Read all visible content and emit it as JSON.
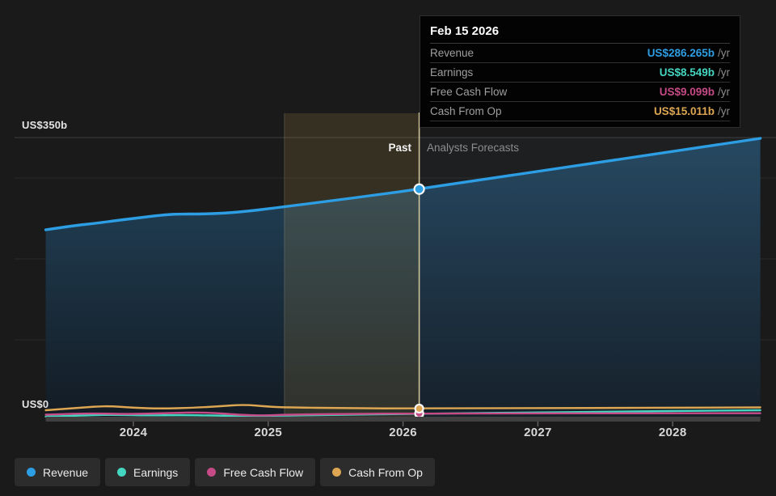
{
  "y_axis": {
    "max_label": "US$350b",
    "zero_label": "US$0"
  },
  "annotations": {
    "past": "Past",
    "forecast": "Analysts Forecasts"
  },
  "tooltip": {
    "date": "Feb 15 2026",
    "rows": [
      {
        "label": "Revenue",
        "value": "US$286.265b",
        "suffix": "/yr",
        "color": "#2d9ee3"
      },
      {
        "label": "Earnings",
        "value": "US$8.549b",
        "suffix": "/yr",
        "color": "#44d6c1"
      },
      {
        "label": "Free Cash Flow",
        "value": "US$9.099b",
        "suffix": "/yr",
        "color": "#c54a86"
      },
      {
        "label": "Cash From Op",
        "value": "US$15.011b",
        "suffix": "/yr",
        "color": "#dca653"
      }
    ]
  },
  "legend": [
    {
      "label": "Revenue",
      "color": "#2d9ee3"
    },
    {
      "label": "Earnings",
      "color": "#44d6c1"
    },
    {
      "label": "Free Cash Flow",
      "color": "#c54a86"
    },
    {
      "label": "Cash From Op",
      "color": "#dca653"
    }
  ],
  "chart_data": {
    "type": "area",
    "title": "",
    "unit": "US$ billions per year",
    "x_domain_years": [
      2023.35,
      2028.65
    ],
    "x_ticks": [
      2024,
      2025,
      2026,
      2027,
      2028
    ],
    "y_max_billions": 350,
    "y_gridlines_billions": [
      100,
      200,
      300,
      350
    ],
    "y_label_top": "US$350b",
    "y_label_zero": "US$0",
    "grid": true,
    "legend_position": "bottom-left",
    "past_label": "Past",
    "forecast_label": "Analysts Forecasts",
    "divider_year": 2026.12,
    "divider_date": "Feb 15 2026",
    "highlight_band_years": [
      2025.12,
      2026.12
    ],
    "series": [
      {
        "name": "Earnings",
        "color": "#44d6c1",
        "line_width": 2.4,
        "marker_value": 8.549,
        "points": [
          [
            2023.35,
            5
          ],
          [
            2023.6,
            6.5
          ],
          [
            2023.85,
            7.5
          ],
          [
            2024.1,
            6.5
          ],
          [
            2024.35,
            7
          ],
          [
            2024.6,
            6.5
          ],
          [
            2024.85,
            5.5
          ],
          [
            2025.12,
            6.5
          ],
          [
            2025.6,
            7.5
          ],
          [
            2026.12,
            8.549
          ],
          [
            2027.3,
            11
          ],
          [
            2028.65,
            13
          ]
        ]
      },
      {
        "name": "Free Cash Flow",
        "color": "#c54a86",
        "line_width": 2.4,
        "marker_value": 9.099,
        "points": [
          [
            2023.35,
            7.5
          ],
          [
            2023.65,
            9.5
          ],
          [
            2023.95,
            8
          ],
          [
            2024.25,
            9.5
          ],
          [
            2024.55,
            10.5
          ],
          [
            2024.8,
            7
          ],
          [
            2025.0,
            6.5
          ],
          [
            2025.12,
            7.5
          ],
          [
            2025.6,
            8.5
          ],
          [
            2026.12,
            9.099
          ],
          [
            2028.65,
            9.3
          ]
        ]
      },
      {
        "name": "Cash From Op",
        "color": "#dca653",
        "line_width": 2.4,
        "marker_value": 15.011,
        "points": [
          [
            2023.35,
            13
          ],
          [
            2023.6,
            16
          ],
          [
            2023.8,
            18.5
          ],
          [
            2024.0,
            16
          ],
          [
            2024.2,
            15
          ],
          [
            2024.45,
            16
          ],
          [
            2024.65,
            18
          ],
          [
            2024.82,
            20
          ],
          [
            2025.0,
            17.5
          ],
          [
            2025.12,
            16.5
          ],
          [
            2025.6,
            15.5
          ],
          [
            2026.12,
            15.011
          ],
          [
            2028.65,
            16.5
          ]
        ]
      },
      {
        "name": "Revenue",
        "color": "#2d9ee3",
        "line_width": 3.4,
        "area": true,
        "marker_value": 286.265,
        "points": [
          [
            2023.35,
            236
          ],
          [
            2023.55,
            241
          ],
          [
            2023.72,
            244
          ],
          [
            2023.9,
            248
          ],
          [
            2024.05,
            251
          ],
          [
            2024.2,
            254
          ],
          [
            2024.32,
            255.5
          ],
          [
            2024.5,
            255.5
          ],
          [
            2024.68,
            256.5
          ],
          [
            2024.85,
            259
          ],
          [
            2025.0,
            262
          ],
          [
            2025.12,
            264.5
          ],
          [
            2025.45,
            271.5
          ],
          [
            2025.8,
            279
          ],
          [
            2026.12,
            286.265
          ],
          [
            2028.65,
            349
          ]
        ]
      }
    ]
  }
}
